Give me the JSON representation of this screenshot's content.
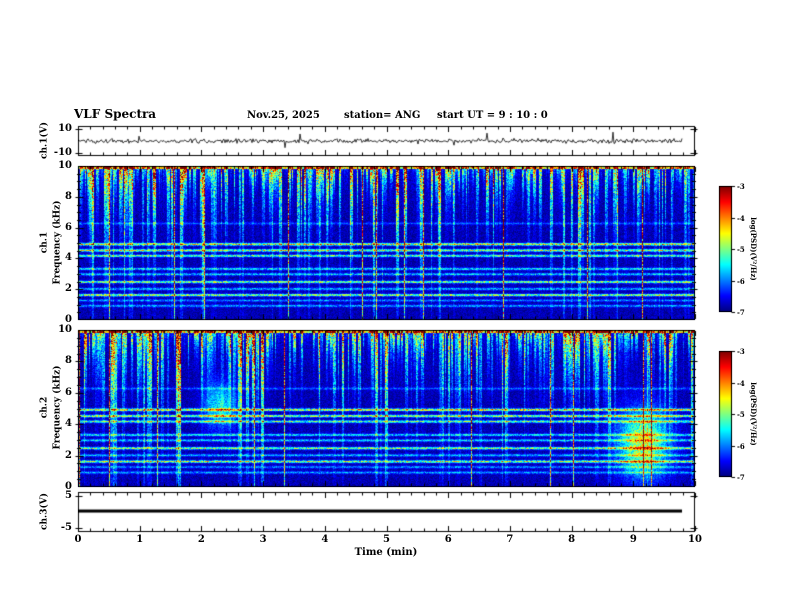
{
  "title": {
    "main": "VLF Spectra",
    "date": "Nov.25, 2025",
    "station": "station= ANG",
    "start_ut": "start UT =  9 : 10 : 0"
  },
  "panels": {
    "ch1_wave": {
      "ylabel": "ch.1(V)",
      "yticks": [
        "10",
        "-10"
      ]
    },
    "spec1": {
      "channel_label": "ch.1",
      "axis_label": "Frequency (kHz)",
      "yticks": [
        "10",
        "8",
        "6",
        "4",
        "2",
        "0"
      ]
    },
    "spec2": {
      "channel_label": "ch.2",
      "axis_label": "Frequency (kHz)",
      "yticks": [
        "10",
        "8",
        "6",
        "4",
        "2",
        "0"
      ]
    },
    "ch3_wave": {
      "ylabel": "ch.3(V)",
      "yticks": [
        "5",
        "-5"
      ]
    }
  },
  "xaxis": {
    "label": "Time (min)",
    "ticks": [
      "0",
      "1",
      "2",
      "3",
      "4",
      "5",
      "6",
      "7",
      "8",
      "9",
      "10"
    ]
  },
  "colorbars": [
    {
      "label": "log(PSD)(V²/Hz)",
      "ticks": [
        "-3",
        "-4",
        "-5",
        "-6",
        "-7"
      ]
    },
    {
      "label": "log(PSD)(V²/Hz)",
      "ticks": [
        "-3",
        "-4",
        "-5",
        "-6",
        "-7"
      ]
    }
  ],
  "colors": {
    "background": "#ffffff",
    "ink": "#000000",
    "colormap": "jet",
    "spectrogram_background": "#000080"
  },
  "chart_data": [
    {
      "id": "ch1_waveform",
      "type": "line",
      "ylabel": "ch.1(V)",
      "xlim": [
        0,
        10
      ],
      "ylim": [
        -12.5,
        12.5
      ],
      "yticks": [
        10,
        -10
      ],
      "x_data_end_min": 9.8,
      "description": "Broadband noise trace centered on 0 V, typical excursion about ±1 V with sporadic impulsive spikes to about ±5 V"
    },
    {
      "id": "ch1_spectrogram",
      "type": "heatmap",
      "xlabel": "Time (min)",
      "ylabel": "Frequency (kHz)",
      "xlim": [
        0,
        10
      ],
      "ylim": [
        0,
        10
      ],
      "zlabel": "log(PSD)(V**2/Hz)",
      "zlim": [
        -7,
        -3
      ],
      "background_level_db": -7,
      "features": {
        "top_band_khz": [
          8.5,
          10
        ],
        "vertical_streaks": "dense broadband sferic bursts descending from 10 kHz, occasional full-band streaks reaching 0 kHz",
        "line_frequencies_khz": [
          0.95,
          1.3,
          1.65,
          2.05,
          2.5,
          3.0,
          3.35,
          4.2,
          4.55,
          4.95,
          6.3
        ],
        "line_strengths": [
          0.9,
          0.8,
          1.9,
          1.0,
          1.8,
          1.1,
          1.2,
          1.6,
          1.9,
          2.2,
          0.6
        ]
      }
    },
    {
      "id": "ch2_spectrogram",
      "type": "heatmap",
      "xlabel": "Time (min)",
      "ylabel": "Frequency (kHz)",
      "xlim": [
        0,
        10
      ],
      "ylim": [
        0,
        10
      ],
      "zlabel": "log(PSD)(V**2/Hz)",
      "zlim": [
        -7,
        -3
      ],
      "background_level_db": -7,
      "features": {
        "top_band_khz": [
          8.5,
          10
        ],
        "vertical_streaks": "dense broadband sferic bursts descending from 10 kHz, occasional full-band streaks reaching 0 kHz",
        "line_frequencies_khz": [
          0.95,
          1.3,
          1.65,
          2.05,
          2.5,
          3.0,
          3.35,
          4.2,
          4.55,
          4.95,
          6.3
        ],
        "line_strengths": [
          0.9,
          0.8,
          1.9,
          1.0,
          1.8,
          1.1,
          1.2,
          1.6,
          1.9,
          2.2,
          0.6
        ],
        "blobs": [
          {
            "t_min": 9.15,
            "f_khz": 2.8,
            "sigma_t": 0.28,
            "sigma_f": 1.5,
            "strength": 2.4
          },
          {
            "t_min": 2.3,
            "f_khz": 5.2,
            "sigma_t": 0.18,
            "sigma_f": 1.0,
            "strength": 1.5
          }
        ]
      }
    },
    {
      "id": "ch3_waveform",
      "type": "line",
      "ylabel": "ch.3(V)",
      "xlim": [
        0,
        10
      ],
      "ylim": [
        -6.25,
        6.25
      ],
      "yticks": [
        5,
        -5
      ],
      "x_data_end_min": 9.8,
      "value_v": 0.3,
      "description": "Constant flat heavy line at about 0.3 V across the full record"
    }
  ]
}
